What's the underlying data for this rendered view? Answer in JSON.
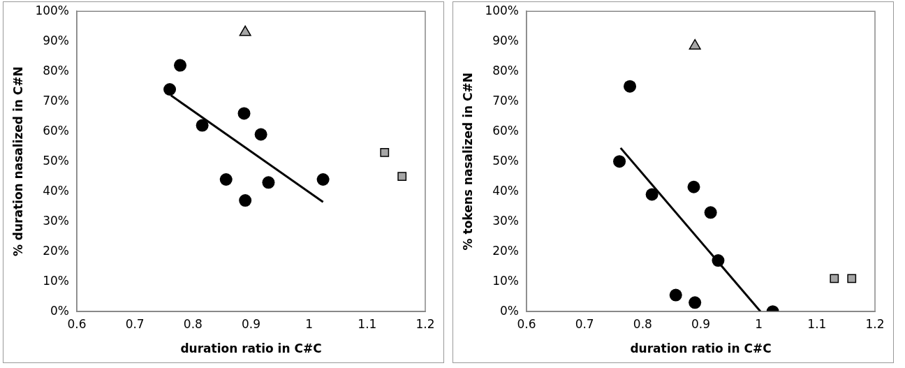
{
  "chart_data": [
    {
      "type": "scatter",
      "xlabel": "duration ratio in C#C",
      "ylabel": "% duration nasalized in C#N",
      "xlim": [
        0.6,
        1.2
      ],
      "xticks": [
        0.6,
        0.7,
        0.8,
        0.9,
        1,
        1.1,
        1.2
      ],
      "ylim": [
        0,
        100
      ],
      "yticks": [
        {
          "value": 0,
          "label": "0%"
        },
        {
          "value": 10,
          "label": "10%"
        },
        {
          "value": 20,
          "label": "20%"
        },
        {
          "value": 30,
          "label": "30%"
        },
        {
          "value": 40,
          "label": "40%"
        },
        {
          "value": 50,
          "label": "50%"
        },
        {
          "value": 60,
          "label": "60%"
        },
        {
          "value": 70,
          "label": "70%"
        },
        {
          "value": 80,
          "label": "80%"
        },
        {
          "value": 90,
          "label": "90%"
        },
        {
          "value": 100,
          "label": "100%"
        }
      ],
      "grid": false,
      "legend": false,
      "series": [
        {
          "type": "scatter",
          "marker": "circle",
          "color": "#000000",
          "x": [
            0.76,
            0.778,
            0.816,
            0.857,
            0.888,
            0.89,
            0.917,
            0.93,
            1.024
          ],
          "values": [
            74,
            82,
            62,
            44,
            66,
            37,
            59,
            43,
            44
          ]
        },
        {
          "type": "scatter",
          "marker": "triangle",
          "color": "#a6a6a6",
          "x": [
            0.89
          ],
          "values": [
            93
          ]
        },
        {
          "type": "scatter",
          "marker": "square",
          "color": "#a6a6a6",
          "x": [
            1.13,
            1.16
          ],
          "values": [
            53,
            45
          ]
        },
        {
          "type": "line",
          "marker": "none",
          "color": "#000000",
          "x": [
            0.762,
            1.024
          ],
          "values": [
            72,
            36.5
          ]
        }
      ]
    },
    {
      "type": "scatter",
      "xlabel": "duration ratio in C#C",
      "ylabel": "% tokens nasalized in C#N",
      "xlim": [
        0.6,
        1.2
      ],
      "xticks": [
        0.6,
        0.7,
        0.8,
        0.9,
        1,
        1.1,
        1.2
      ],
      "ylim": [
        0,
        100
      ],
      "yticks": [
        {
          "value": 0,
          "label": "0%"
        },
        {
          "value": 10,
          "label": "10%"
        },
        {
          "value": 20,
          "label": "20%"
        },
        {
          "value": 30,
          "label": "30%"
        },
        {
          "value": 40,
          "label": "40%"
        },
        {
          "value": 50,
          "label": "50%"
        },
        {
          "value": 60,
          "label": "60%"
        },
        {
          "value": 70,
          "label": "70%"
        },
        {
          "value": 80,
          "label": "80%"
        },
        {
          "value": 90,
          "label": "90%"
        },
        {
          "value": 100,
          "label": "100%"
        }
      ],
      "grid": false,
      "legend": false,
      "series": [
        {
          "type": "scatter",
          "marker": "circle",
          "color": "#000000",
          "x": [
            0.76,
            0.778,
            0.816,
            0.857,
            0.888,
            0.89,
            0.917,
            0.93,
            1.024
          ],
          "values": [
            50,
            75,
            39,
            5.5,
            41.5,
            3,
            33,
            17,
            0
          ]
        },
        {
          "type": "scatter",
          "marker": "triangle",
          "color": "#a6a6a6",
          "x": [
            0.89
          ],
          "values": [
            88.5
          ]
        },
        {
          "type": "scatter",
          "marker": "square",
          "color": "#a6a6a6",
          "x": [
            1.13,
            1.16
          ],
          "values": [
            11,
            11
          ]
        },
        {
          "type": "line",
          "marker": "none",
          "color": "#000000",
          "x": [
            0.762,
            1.003
          ],
          "values": [
            54.5,
            0
          ]
        }
      ]
    }
  ]
}
